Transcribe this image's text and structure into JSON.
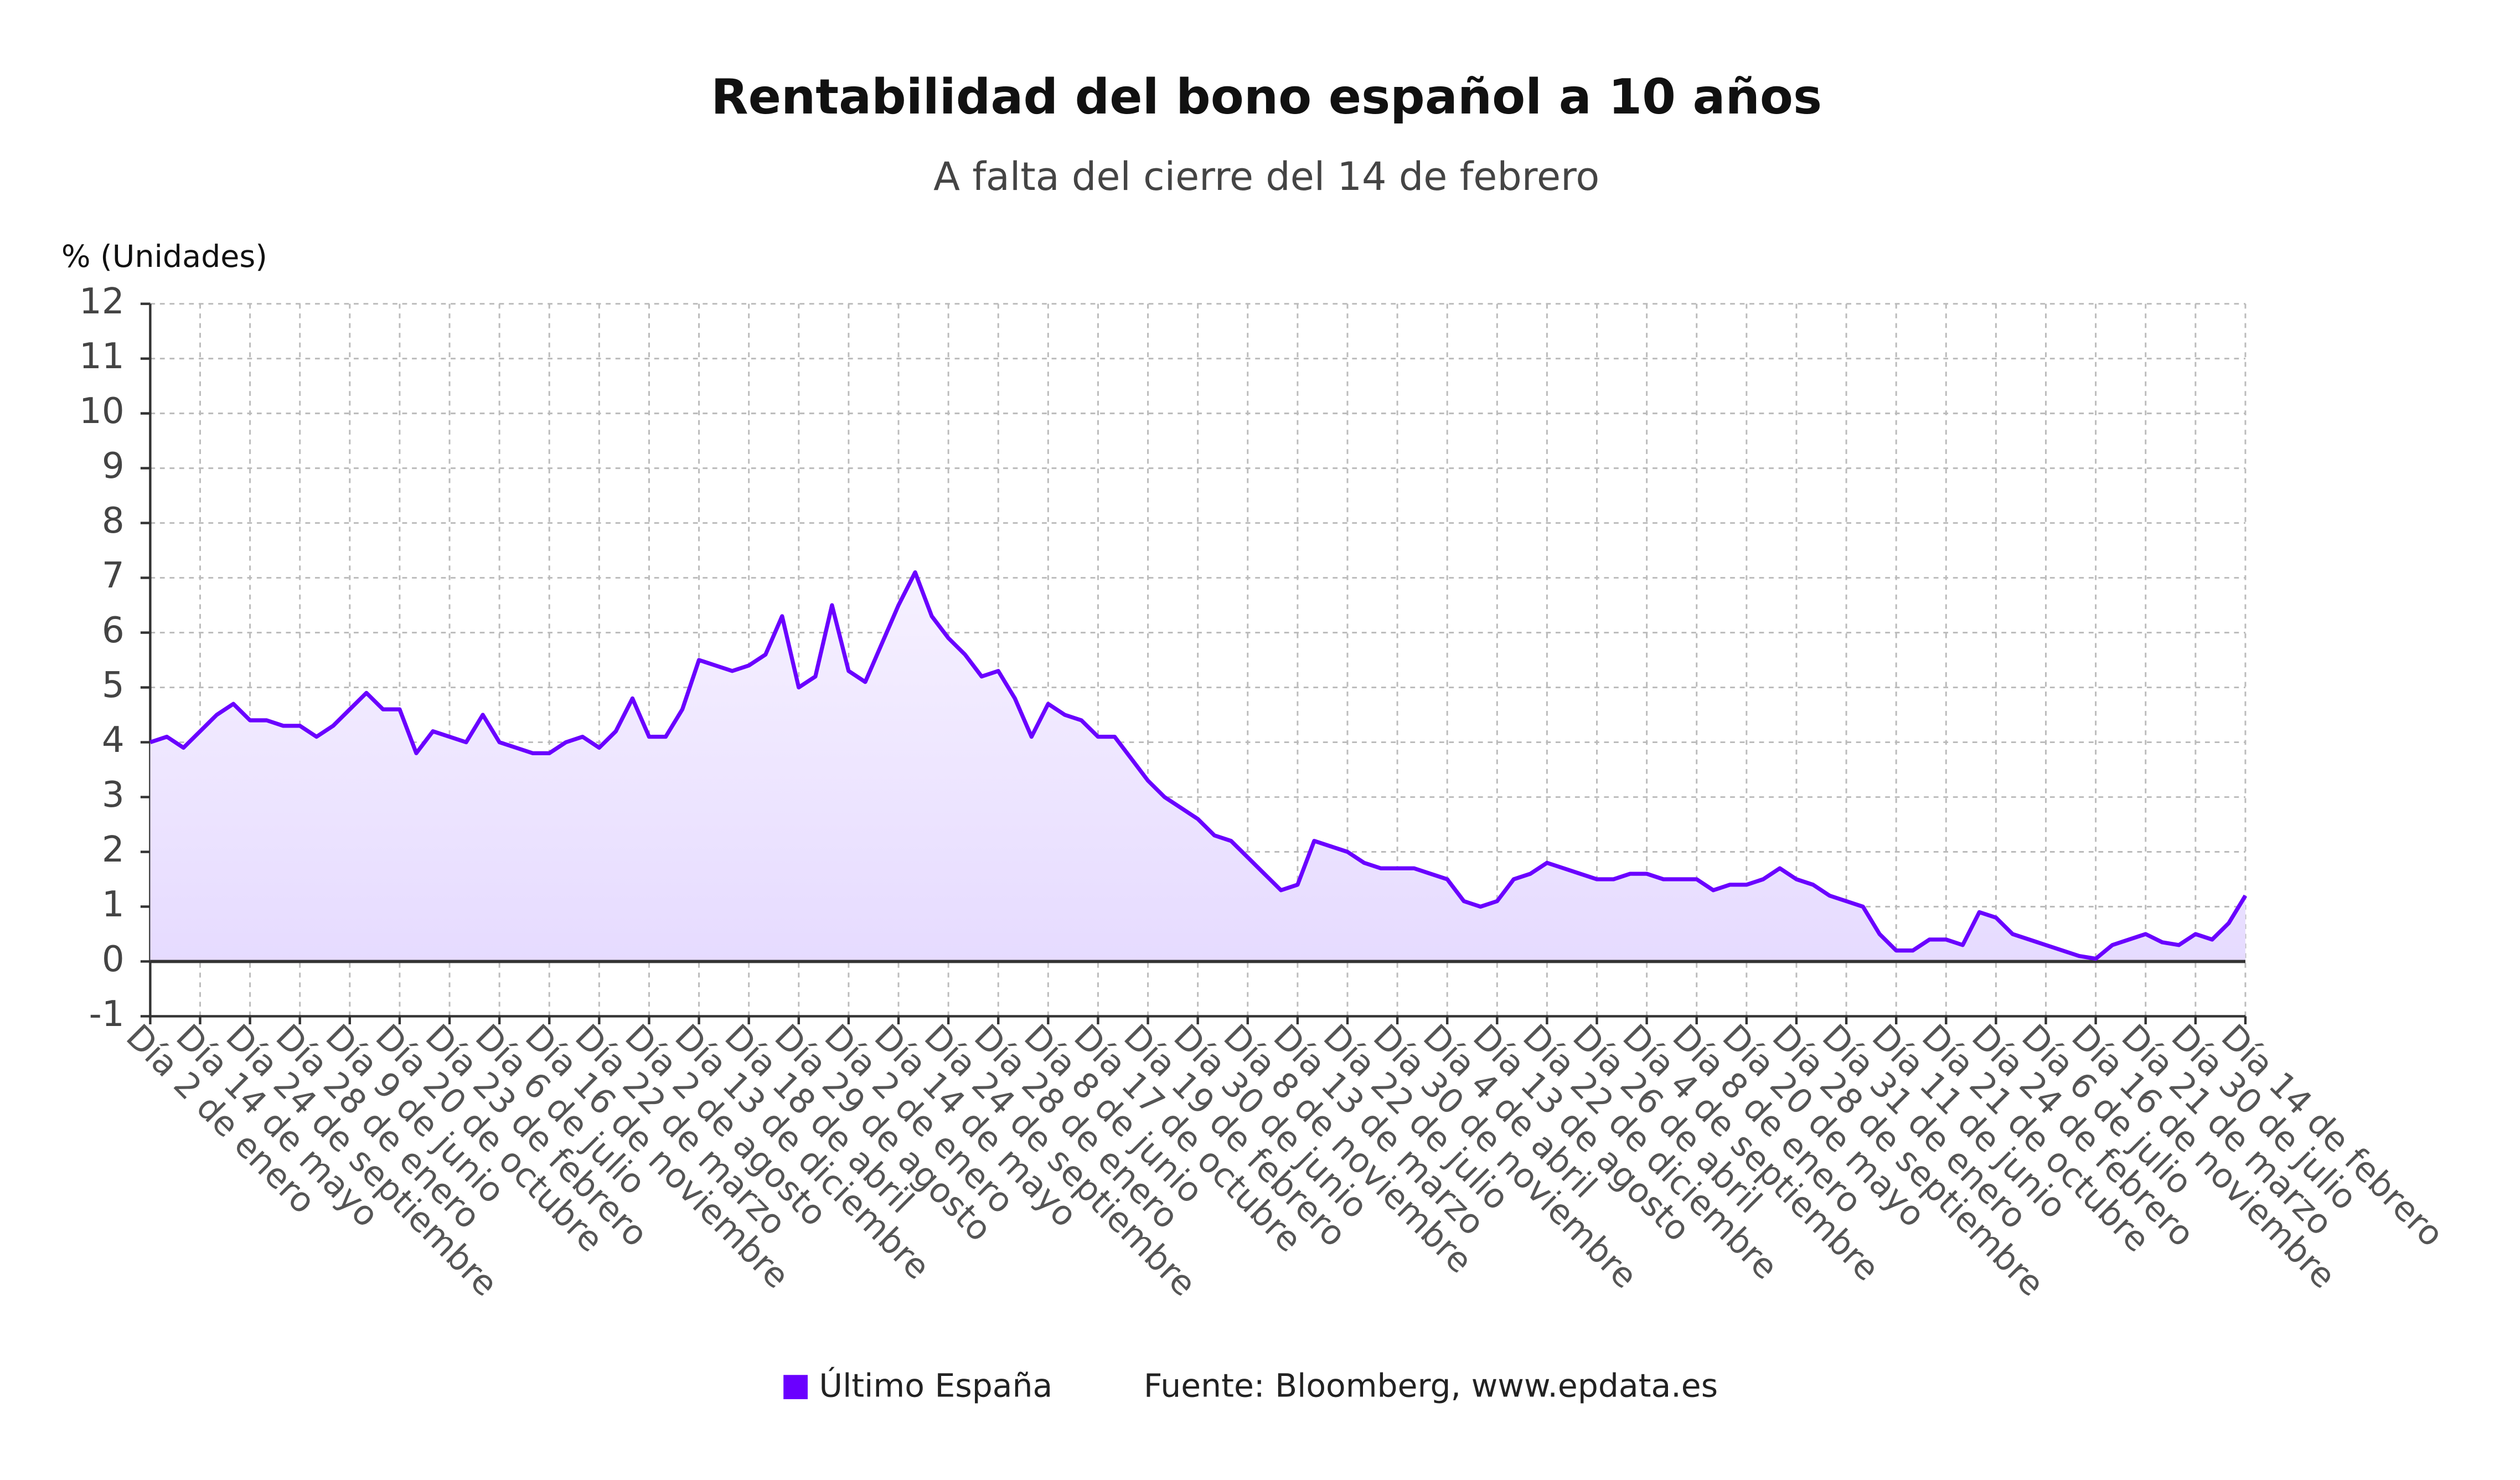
{
  "chart_data": {
    "type": "line",
    "title": "Rentabilidad del bono español a 10 años",
    "subtitle": "A falta del cierre del 14 de febrero",
    "y_label": "% (Unidades)",
    "source": "Fuente: Bloomberg, www.epdata.es",
    "categories": [
      "Día 2 de enero",
      null,
      null,
      "Día 14 de mayo",
      null,
      null,
      "Día 24 de septiembre",
      null,
      null,
      "Día 28 de enero",
      null,
      null,
      "Día 9 de junio",
      null,
      null,
      "Día 20 de octubre",
      null,
      null,
      "Día 23 de febrero",
      null,
      null,
      "Día 6 de julio",
      null,
      null,
      "Día 16 de noviembre",
      null,
      null,
      "Día 22 de marzo",
      null,
      null,
      "Día 2 de agosto",
      null,
      null,
      "Día 13 de diciembre",
      null,
      null,
      "Día 18 de abril",
      null,
      null,
      "Día 29 de agosto",
      null,
      null,
      "Día 2 de enero",
      null,
      null,
      "Día 14 de mayo",
      null,
      null,
      "Día 24 de septiembre",
      null,
      null,
      "Día 28 de enero",
      null,
      null,
      "Día 8 de junio",
      null,
      null,
      "Día 17 de octubre",
      null,
      null,
      "Día 19 de febrero",
      null,
      null,
      "Día 30 de junio",
      null,
      null,
      "Día 8 de noviembre",
      null,
      null,
      "Día 13 de marzo",
      null,
      null,
      "Día 22 de julio",
      null,
      null,
      "Día 30 de noviembre",
      null,
      null,
      "Día 4 de abril",
      null,
      null,
      "Día 13 de agosto",
      null,
      null,
      "Día 22 de diciembre",
      null,
      null,
      "Día 26 de abril",
      null,
      null,
      "Día 4 de septiembre",
      null,
      null,
      "Día 8 de enero",
      null,
      null,
      "Día 20 de mayo",
      null,
      null,
      "Día 28 de septiembre",
      null,
      null,
      "Día 31 de enero",
      null,
      null,
      "Día 11 de junio",
      null,
      null,
      "Día 21 de octubre",
      null,
      null,
      "Día 24 de febrero",
      null,
      null,
      "Día 6 de julio",
      null,
      null,
      "Día 16 de noviembre",
      null,
      null,
      "Día 21 de marzo",
      null,
      null,
      "Día 30 de julio",
      null,
      null,
      "Día 14 de febrero"
    ],
    "series": [
      {
        "name": "Último España",
        "color": "#6a00ff",
        "values": [
          4.0,
          4.1,
          3.9,
          4.2,
          4.5,
          4.7,
          4.4,
          4.4,
          4.3,
          4.3,
          4.1,
          4.3,
          4.6,
          4.9,
          4.6,
          4.6,
          3.8,
          4.2,
          4.1,
          4.0,
          4.5,
          4.0,
          3.9,
          3.8,
          3.8,
          4.0,
          4.1,
          3.9,
          4.2,
          4.8,
          4.1,
          4.1,
          4.6,
          5.5,
          5.4,
          5.3,
          5.4,
          5.6,
          6.3,
          5.0,
          5.2,
          6.5,
          5.3,
          5.1,
          5.8,
          6.5,
          7.1,
          6.3,
          5.9,
          5.6,
          5.2,
          5.3,
          4.8,
          4.1,
          4.7,
          4.5,
          4.4,
          4.1,
          4.1,
          3.7,
          3.3,
          3.0,
          2.8,
          2.6,
          2.3,
          2.2,
          1.9,
          1.6,
          1.3,
          1.4,
          2.2,
          2.1,
          2.0,
          1.8,
          1.7,
          1.7,
          1.7,
          1.6,
          1.5,
          1.1,
          1.0,
          1.1,
          1.5,
          1.6,
          1.8,
          1.7,
          1.6,
          1.5,
          1.5,
          1.6,
          1.6,
          1.5,
          1.5,
          1.5,
          1.3,
          1.4,
          1.4,
          1.5,
          1.7,
          1.5,
          1.4,
          1.2,
          1.1,
          1.0,
          0.5,
          0.2,
          0.2,
          0.4,
          0.4,
          0.3,
          0.9,
          0.8,
          0.5,
          0.4,
          0.3,
          0.2,
          0.1,
          0.05,
          0.3,
          0.4,
          0.5,
          0.35,
          0.3,
          0.5,
          0.4,
          0.7,
          1.2
        ]
      }
    ],
    "ylim": [
      -1,
      12
    ],
    "yticks": [
      -1,
      0,
      1,
      2,
      3,
      4,
      5,
      6,
      7,
      8,
      9,
      10,
      11,
      12
    ],
    "grid": true
  }
}
